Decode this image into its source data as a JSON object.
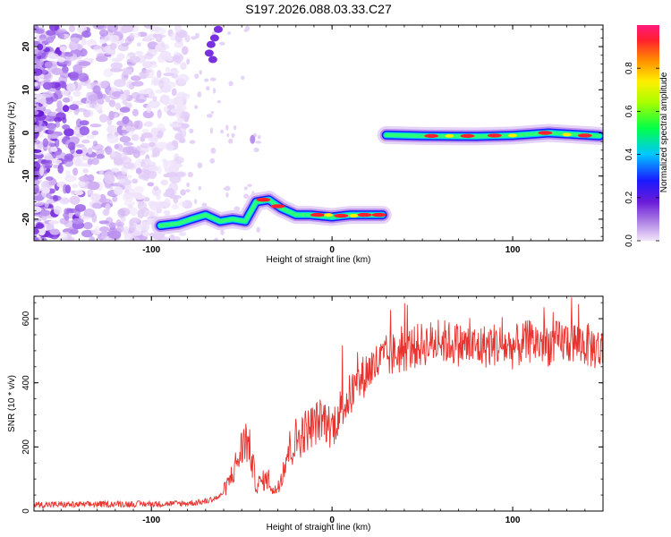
{
  "title": "S197.2026.088.03.33.C27",
  "chart_data": [
    {
      "type": "heatmap",
      "name": "spectrogram",
      "xlabel": "Height of straight line (km)",
      "ylabel": "Frequency (Hz)",
      "xlim": [
        -165,
        150
      ],
      "ylim": [
        -25,
        25
      ],
      "xticks": [
        -100,
        0,
        100
      ],
      "yticks": [
        -20,
        -10,
        0,
        10,
        20
      ],
      "colorbar": {
        "label": "Normalized spectral amplitude",
        "range": [
          0,
          1
        ],
        "ticks": [
          0.0,
          0.2,
          0.4,
          0.6,
          0.8
        ],
        "tick_labels": [
          "0.0",
          "0.2",
          "0.4",
          "0.6",
          "0.8"
        ]
      },
      "ridge": [
        {
          "x": -95,
          "y": -21.5
        },
        {
          "x": -85,
          "y": -21
        },
        {
          "x": -78,
          "y": -20
        },
        {
          "x": -70,
          "y": -19
        },
        {
          "x": -62,
          "y": -20.5
        },
        {
          "x": -55,
          "y": -20
        },
        {
          "x": -48,
          "y": -20.5
        },
        {
          "x": -42,
          "y": -16
        },
        {
          "x": -35,
          "y": -15.5
        },
        {
          "x": -28,
          "y": -17.5
        },
        {
          "x": -20,
          "y": -19
        },
        {
          "x": -12,
          "y": -19
        },
        {
          "x": 0,
          "y": -19.5
        },
        {
          "x": 10,
          "y": -19
        },
        {
          "x": 28,
          "y": -19
        },
        {
          "x": 30,
          "y": -0.5
        },
        {
          "x": 50,
          "y": -0.7
        },
        {
          "x": 80,
          "y": -0.8
        },
        {
          "x": 100,
          "y": -0.6
        },
        {
          "x": 120,
          "y": 0
        },
        {
          "x": 148,
          "y": -0.7
        }
      ]
    },
    {
      "type": "line",
      "name": "snr",
      "xlabel": "Height of straight line (km)",
      "ylabel": "SNR (10 * v/v)",
      "xlim": [
        -165,
        150
      ],
      "ylim": [
        0,
        670
      ],
      "xticks": [
        -100,
        0,
        100
      ],
      "yticks": [
        0,
        200,
        400,
        600
      ],
      "color": "#e8332e",
      "series": [
        {
          "name": "SNR",
          "x": [
            -165,
            -140,
            -120,
            -100,
            -80,
            -70,
            -62,
            -58,
            -55,
            -52,
            -48,
            -45,
            -42,
            -38,
            -35,
            -32,
            -28,
            -25,
            -20,
            -15,
            -10,
            -5,
            0,
            5,
            10,
            15,
            20,
            25,
            30,
            40,
            50,
            60,
            70,
            80,
            90,
            100,
            110,
            120,
            130,
            140,
            150
          ],
          "y": [
            20,
            20,
            22,
            22,
            24,
            30,
            45,
            80,
            120,
            160,
            230,
            180,
            80,
            95,
            100,
            55,
            110,
            180,
            220,
            250,
            270,
            290,
            260,
            320,
            360,
            400,
            440,
            460,
            480,
            500,
            520,
            530,
            520,
            510,
            520,
            510,
            530,
            520,
            530,
            520,
            500
          ]
        }
      ]
    }
  ]
}
